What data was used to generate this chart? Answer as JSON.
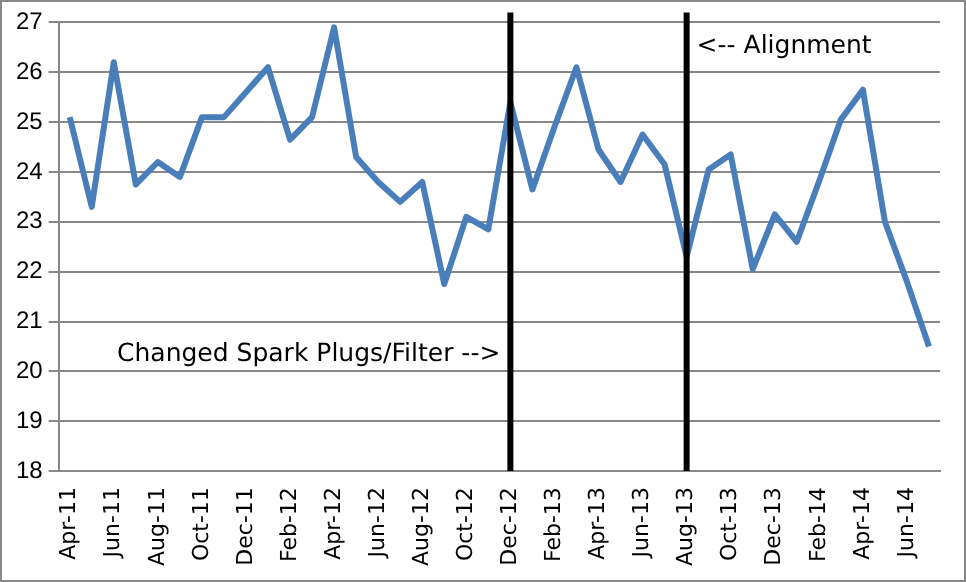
{
  "chart_data": {
    "type": "line",
    "categories": [
      "Apr-11",
      null,
      "Jun-11",
      null,
      "Aug-11",
      null,
      "Oct-11",
      null,
      "Dec-11",
      null,
      "Feb-12",
      null,
      "Apr-12",
      null,
      "Jun-12",
      null,
      "Aug-12",
      null,
      "Oct-12",
      null,
      "Dec-12",
      null,
      "Feb-13",
      null,
      "Apr-13",
      null,
      "Jun-13",
      null,
      "Aug-13",
      null,
      "Oct-13",
      null,
      "Dec-13",
      null,
      "Feb-14",
      null,
      "Apr-14",
      null,
      "Jun-14",
      null
    ],
    "series": [
      {
        "color": "#4a7ebb",
        "values": [
          25.1,
          23.3,
          26.2,
          23.75,
          24.2,
          23.9,
          25.1,
          25.1,
          25.6,
          26.1,
          24.65,
          25.1,
          26.9,
          24.3,
          23.8,
          23.4,
          23.8,
          21.75,
          23.1,
          22.85,
          25.4,
          23.65,
          24.9,
          26.1,
          24.45,
          23.8,
          24.75,
          24.15,
          22.3,
          24.05,
          24.35,
          22.05,
          23.15,
          22.6,
          23.8,
          25.05,
          25.65,
          23.0,
          21.8,
          20.5
        ]
      }
    ],
    "ylim": [
      18,
      27
    ],
    "yticks": [
      18,
      19,
      20,
      21,
      22,
      23,
      24,
      25,
      26,
      27
    ],
    "grid": "y",
    "legend": false,
    "marker": "none",
    "line_style": "solid",
    "ref_lines": [
      {
        "axis": "x",
        "value": "Dec-12",
        "color": "#000000",
        "label": "Changed Spark Plugs/Filter -->"
      },
      {
        "axis": "x",
        "value": "Aug-13",
        "color": "#000000",
        "label": "<-- Alignment"
      }
    ]
  }
}
